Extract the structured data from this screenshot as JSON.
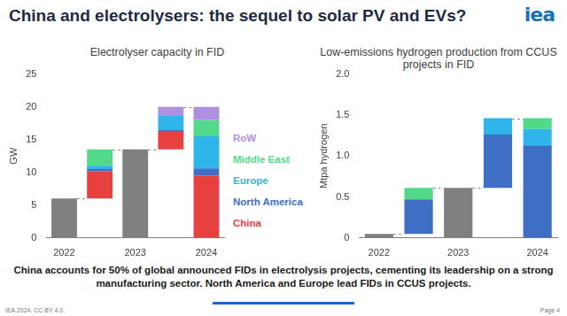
{
  "page": {
    "title": "China and electrolysers: the sequel to solar PV and EVs?",
    "logo": "iea",
    "caption": "China accounts for 50% of global announced FIDs in electrolysis projects, cementing its leadership on a strong manufacturing sector. North America and Europe lead FIDs in CCUS projects.",
    "footer": "IEA 2024. CC BY 4.0.",
    "page_number": "Page 4"
  },
  "chart_data": [
    {
      "type": "bar",
      "stacked": true,
      "title": "Electrolyser capacity in FID",
      "y_label": "GW",
      "categories": [
        "2022",
        null,
        "2023",
        null,
        "2024"
      ],
      "series": [
        {
          "type": "total",
          "color": "#7f7f7f",
          "values": [
            6,
            null,
            13.5,
            null,
            null
          ]
        },
        {
          "name": "China",
          "color": "#e8403f",
          "values": [
            null,
            4.2,
            null,
            2.8,
            9.5
          ]
        },
        {
          "name": "North America",
          "color": "#3e6fc5",
          "values": [
            null,
            0.3,
            null,
            0.2,
            1.1
          ]
        },
        {
          "name": "Europe",
          "color": "#2fb5ea",
          "values": [
            null,
            0.5,
            null,
            2.1,
            4.9
          ]
        },
        {
          "name": "Middle East",
          "color": "#52d98a",
          "values": [
            null,
            2.5,
            null,
            null,
            2.5
          ]
        },
        {
          "name": "RoW",
          "color": "#ae8fe0",
          "values": [
            null,
            null,
            null,
            1.4,
            2.0
          ]
        }
      ],
      "ylim": [
        0,
        25
      ],
      "yticks": [
        0,
        5,
        10,
        15,
        20,
        25
      ],
      "grid": false,
      "legend": "right"
    },
    {
      "type": "bar",
      "stacked": true,
      "title": "Low-emissions hydrogen production from CCUS projects in FID",
      "y_label": "Mtpa hydrogen",
      "categories": [
        "2022",
        null,
        "2023",
        null,
        "2024"
      ],
      "series": [
        {
          "type": "total",
          "color": "#7f7f7f",
          "values": [
            0.05,
            null,
            0.61,
            null,
            null
          ]
        },
        {
          "name": "North America",
          "color": "#3e6fc5",
          "values": [
            null,
            0.42,
            null,
            0.65,
            1.13
          ]
        },
        {
          "name": "Europe",
          "color": "#2fb5ea",
          "values": [
            null,
            null,
            null,
            0.2,
            0.2
          ]
        },
        {
          "name": "Middle East",
          "color": "#52d98a",
          "values": [
            null,
            0.14,
            null,
            null,
            0.13
          ]
        }
      ],
      "ylim": [
        0,
        2
      ],
      "yticks": [
        0,
        0.5,
        {
          "value": 1,
          "label": "1.0"
        },
        1.5,
        {
          "value": 2,
          "label": "2.0"
        }
      ],
      "grid": false,
      "legend": false
    }
  ]
}
